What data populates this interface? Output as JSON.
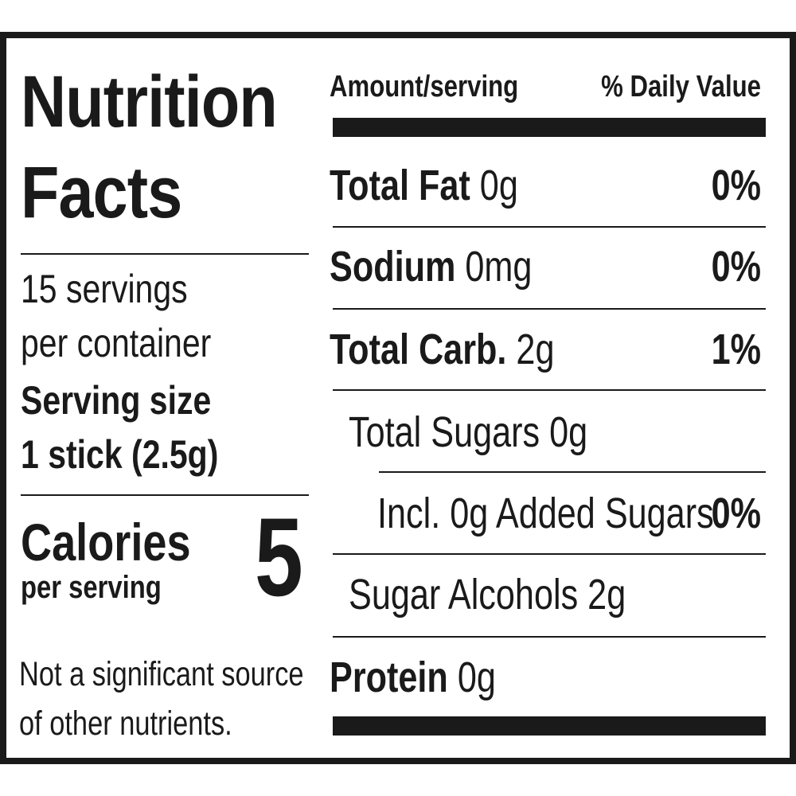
{
  "title_line1": "Nutrition",
  "title_line2": "Facts",
  "servings_line1": "15 servings",
  "servings_line2": "per container",
  "serving_size_label": "Serving size",
  "serving_size_value": "1 stick (2.5g)",
  "calories_label": "Calories",
  "calories_sub": "per serving",
  "calories_value": "5",
  "footnote_line1": "Not a significant source",
  "footnote_line2": "of other nutrients.",
  "header": {
    "amount": "Amount/serving",
    "daily_value": "% Daily Value"
  },
  "nutrients": [
    {
      "name": "Total Fat",
      "amount": " 0g",
      "dv": "0%"
    },
    {
      "name": "Sodium",
      "amount": " 0mg",
      "dv": "0%"
    },
    {
      "name": "Total Carb.",
      "amount": " 2g",
      "dv": "1%"
    },
    {
      "text": "Total Sugars 0g"
    },
    {
      "text": "Incl. 0g Added Sugars",
      "dv": "0%"
    },
    {
      "text": "Sugar Alcohols 2g"
    },
    {
      "name": "Protein",
      "amount": " 0g"
    }
  ]
}
